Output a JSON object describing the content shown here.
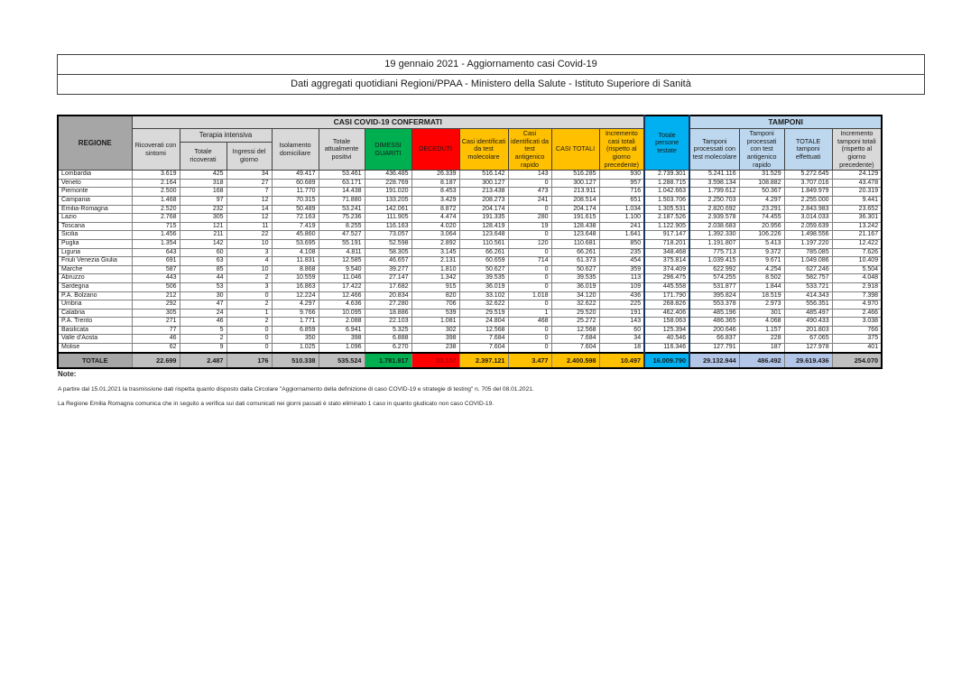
{
  "title": {
    "line1": "19 gennaio 2021 - Aggiornamento casi Covid-19",
    "line2": "Dati aggregati quotidiani Regioni/PPAA - Ministero della Salute - Istituto Superiore di Sanità"
  },
  "table": {
    "section_headers": {
      "confermati": "CASI COVID-19 CONFERMATI",
      "tamponi": "TAMPONI"
    },
    "col_headers": {
      "regione": "REGIONE",
      "ricoverati": "Ricoverati con sintomi",
      "terapia_intensiva": "Terapia intensiva",
      "ti_totale": "Totale ricoverati",
      "ti_ingressi": "Ingressi del giorno",
      "isolamento": "Isolamento domiciliare",
      "attualmente_positivi": "Totale attualmente positivi",
      "dimessi": "DIMESSI GUARITI",
      "deceduti": "DECEDUTI",
      "casi_molecolare": "Casi identificati da test molecolare",
      "casi_antigenico": "Casi identificati da test antigenico rapido",
      "casi_totali": "CASI TOTALI",
      "incremento_casi": "Incremento casi totali (rispetto al giorno precedente)",
      "persone_testate": "Totale persone testate",
      "tamponi_molecolare": "Tamponi processati con test molecolare",
      "tamponi_antigenico": "Tamponi processati con test antigenico rapido",
      "tamponi_totale": "TOTALE tamponi effettuati",
      "incremento_tamponi": "Incremento tamponi totali (rispetto al giorno precedente)"
    },
    "rows": [
      {
        "regione": "Lombardia",
        "values": [
          "3.619",
          "425",
          "34",
          "49.417",
          "53.461",
          "436.485",
          "26.339",
          "516.142",
          "143",
          "516.285",
          "930",
          "2.739.301",
          "5.241.116",
          "31.529",
          "5.272.645",
          "24.129"
        ]
      },
      {
        "regione": "Veneto",
        "values": [
          "2.164",
          "318",
          "27",
          "60.689",
          "63.171",
          "228.769",
          "8.187",
          "300.127",
          "0",
          "300.127",
          "957",
          "1.288.715",
          "3.598.134",
          "108.882",
          "3.707.016",
          "43.478"
        ]
      },
      {
        "regione": "Piemonte",
        "values": [
          "2.500",
          "168",
          "7",
          "11.770",
          "14.438",
          "191.020",
          "8.453",
          "213.438",
          "473",
          "213.911",
          "716",
          "1.042.663",
          "1.799.612",
          "50.367",
          "1.849.979",
          "20.319"
        ]
      },
      {
        "regione": "Campania",
        "values": [
          "1.468",
          "97",
          "12",
          "70.315",
          "71.880",
          "133.205",
          "3.429",
          "208.273",
          "241",
          "208.514",
          "651",
          "1.503.706",
          "2.250.703",
          "4.297",
          "2.255.000",
          "9.441"
        ]
      },
      {
        "regione": "Emilia-Romagna",
        "values": [
          "2.520",
          "232",
          "14",
          "50.489",
          "53.241",
          "142.061",
          "8.872",
          "204.174",
          "0",
          "204.174",
          "1.034",
          "1.305.531",
          "2.820.692",
          "23.291",
          "2.843.983",
          "23.652"
        ]
      },
      {
        "regione": "Lazio",
        "values": [
          "2.768",
          "305",
          "12",
          "72.163",
          "75.236",
          "111.905",
          "4.474",
          "191.335",
          "280",
          "191.615",
          "1.100",
          "2.187.526",
          "2.939.578",
          "74.455",
          "3.014.033",
          "36.301"
        ]
      },
      {
        "regione": "Toscana",
        "values": [
          "715",
          "121",
          "11",
          "7.419",
          "8.255",
          "116.163",
          "4.020",
          "128.419",
          "19",
          "128.438",
          "241",
          "1.122.905",
          "2.038.683",
          "20.956",
          "2.059.639",
          "13.242"
        ]
      },
      {
        "regione": "Sicilia",
        "values": [
          "1.456",
          "211",
          "22",
          "45.860",
          "47.527",
          "73.057",
          "3.064",
          "123.648",
          "0",
          "123.648",
          "1.641",
          "917.147",
          "1.392.330",
          "106.226",
          "1.498.556",
          "21.167"
        ]
      },
      {
        "regione": "Puglia",
        "values": [
          "1.354",
          "142",
          "10",
          "53.695",
          "55.191",
          "52.598",
          "2.892",
          "110.561",
          "120",
          "110.681",
          "850",
          "718.201",
          "1.191.807",
          "5.413",
          "1.197.220",
          "12.422"
        ]
      },
      {
        "regione": "Liguria",
        "values": [
          "643",
          "60",
          "3",
          "4.108",
          "4.811",
          "58.305",
          "3.145",
          "66.261",
          "0",
          "66.261",
          "235",
          "348.468",
          "775.713",
          "9.372",
          "785.085",
          "7.626"
        ]
      },
      {
        "regione": "Friuli Venezia Giulia",
        "values": [
          "691",
          "63",
          "4",
          "11.831",
          "12.585",
          "46.657",
          "2.131",
          "60.659",
          "714",
          "61.373",
          "454",
          "375.814",
          "1.039.415",
          "9.671",
          "1.049.086",
          "10.409"
        ]
      },
      {
        "regione": "Marche",
        "values": [
          "587",
          "85",
          "10",
          "8.868",
          "9.540",
          "39.277",
          "1.810",
          "50.627",
          "0",
          "50.627",
          "359",
          "374.409",
          "622.992",
          "4.254",
          "627.246",
          "5.504"
        ]
      },
      {
        "regione": "Abruzzo",
        "values": [
          "443",
          "44",
          "2",
          "10.559",
          "11.046",
          "27.147",
          "1.342",
          "39.535",
          "0",
          "39.535",
          "113",
          "296.475",
          "574.255",
          "8.502",
          "582.757",
          "4.048"
        ]
      },
      {
        "regione": "Sardegna",
        "values": [
          "506",
          "53",
          "3",
          "16.863",
          "17.422",
          "17.682",
          "915",
          "36.019",
          "0",
          "36.019",
          "109",
          "445.558",
          "531.877",
          "1.844",
          "533.721",
          "2.918"
        ]
      },
      {
        "regione": "P.A. Bolzano",
        "values": [
          "212",
          "30",
          "0",
          "12.224",
          "12.466",
          "20.834",
          "820",
          "33.102",
          "1.018",
          "34.120",
          "436",
          "171.790",
          "395.824",
          "18.519",
          "414.343",
          "7.398"
        ]
      },
      {
        "regione": "Umbria",
        "values": [
          "292",
          "47",
          "2",
          "4.297",
          "4.636",
          "27.280",
          "706",
          "32.622",
          "0",
          "32.622",
          "225",
          "268.826",
          "553.378",
          "2.973",
          "556.351",
          "4.970"
        ]
      },
      {
        "regione": "Calabria",
        "values": [
          "305",
          "24",
          "1",
          "9.766",
          "10.095",
          "18.886",
          "539",
          "29.519",
          "1",
          "29.520",
          "191",
          "462.406",
          "485.196",
          "301",
          "485.497",
          "2.466"
        ]
      },
      {
        "regione": "P.A. Trento",
        "values": [
          "271",
          "46",
          "2",
          "1.771",
          "2.088",
          "22.103",
          "1.081",
          "24.804",
          "468",
          "25.272",
          "143",
          "158.063",
          "486.365",
          "4.068",
          "490.433",
          "3.038"
        ]
      },
      {
        "regione": "Basilicata",
        "values": [
          "77",
          "5",
          "0",
          "6.859",
          "6.941",
          "5.325",
          "302",
          "12.568",
          "0",
          "12.568",
          "60",
          "125.394",
          "200.646",
          "1.157",
          "201.803",
          "766"
        ]
      },
      {
        "regione": "Valle d'Aosta",
        "values": [
          "46",
          "2",
          "0",
          "350",
          "398",
          "6.888",
          "398",
          "7.684",
          "0",
          "7.684",
          "34",
          "40.546",
          "66.837",
          "228",
          "67.065",
          "375"
        ]
      },
      {
        "regione": "Molise",
        "values": [
          "62",
          "9",
          "0",
          "1.025",
          "1.096",
          "6.270",
          "238",
          "7.604",
          "0",
          "7.604",
          "18",
          "116.346",
          "127.791",
          "187",
          "127.978",
          "401"
        ]
      }
    ],
    "total_row": {
      "regione": "TOTALE",
      "values": [
        "22.699",
        "2.487",
        "176",
        "510.338",
        "535.524",
        "1.781.917",
        "83.157",
        "2.397.121",
        "3.477",
        "2.400.598",
        "10.497",
        "16.009.790",
        "29.132.944",
        "486.492",
        "29.619.436",
        "254.070"
      ]
    }
  },
  "notes": {
    "heading": "Note:",
    "items": [
      "A partire dal 15.01.2021 la trasmissione dati rispetta quanto disposto dalla Circolare \"Aggiornamento della definizione di caso COVID-19 e strategie di testing\" n. 705 del 08.01.2021.",
      "La Regione Emilia Romagna comunica che in seguito a verifica sui dati comunicati nei giorni passati è stato eliminato 1 caso in quanto giudicato non caso COVID-19."
    ]
  },
  "colors": {
    "green_dimessi": "#00b050",
    "red_deceduti": "#ff0000",
    "yellow_casi": "#ffc000",
    "cyan_persone_testate": "#00b0f0",
    "lightblue_tamponi": "#bdd7ee",
    "gray_header": "#a6a6a6",
    "lightgray_header": "#d9d9d9"
  }
}
